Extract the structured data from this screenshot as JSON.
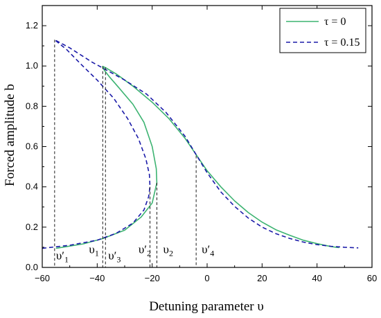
{
  "chart_data": {
    "type": "line",
    "xlabel": "Detuning  parameter υ",
    "ylabel": "Forced amplitude b",
    "xlim": [
      -60,
      60
    ],
    "ylim": [
      0,
      1.3
    ],
    "xticks": [
      "−60",
      "−40",
      "−20",
      "0",
      "20",
      "40",
      "60"
    ],
    "yticks": [
      "0.0",
      "0.2",
      "0.4",
      "0.6",
      "0.8",
      "1.0",
      "1.2"
    ],
    "legend_position": "top-right",
    "series": [
      {
        "name": "τ = 0",
        "style": "solid",
        "color": "#3cb371",
        "points": [
          [
            -55,
            0.095
          ],
          [
            -45,
            0.117
          ],
          [
            -38,
            0.143
          ],
          [
            -30,
            0.185
          ],
          [
            -24,
            0.25
          ],
          [
            -20,
            0.32
          ],
          [
            -18.3,
            0.42
          ],
          [
            -18.5,
            0.49
          ],
          [
            -20,
            0.6
          ],
          [
            -23,
            0.72
          ],
          [
            -27,
            0.81
          ],
          [
            -32,
            0.89
          ],
          [
            -35.5,
            0.945
          ],
          [
            -37.5,
            0.98
          ],
          [
            -38,
            0.998
          ],
          [
            -37,
            0.992
          ],
          [
            -33,
            0.96
          ],
          [
            -27,
            0.9
          ],
          [
            -20,
            0.82
          ],
          [
            -14,
            0.74
          ],
          [
            -8,
            0.64
          ],
          [
            -4,
            0.56
          ],
          [
            0,
            0.48
          ],
          [
            5,
            0.4
          ],
          [
            10,
            0.33
          ],
          [
            15,
            0.272
          ],
          [
            20,
            0.225
          ],
          [
            25,
            0.187
          ],
          [
            30,
            0.16
          ],
          [
            35,
            0.135
          ],
          [
            40,
            0.118
          ],
          [
            45,
            0.104
          ],
          [
            48,
            0.098
          ]
        ]
      },
      {
        "name": "τ = 0.15",
        "style": "dashed",
        "color": "#1a1aa8",
        "points": [
          [
            -60,
            0.095
          ],
          [
            -50,
            0.11
          ],
          [
            -40,
            0.135
          ],
          [
            -33,
            0.17
          ],
          [
            -27,
            0.22
          ],
          [
            -23,
            0.285
          ],
          [
            -21.3,
            0.35
          ],
          [
            -20.8,
            0.4
          ],
          [
            -21,
            0.46
          ],
          [
            -22.3,
            0.54
          ],
          [
            -25,
            0.64
          ],
          [
            -29,
            0.74
          ],
          [
            -34,
            0.84
          ],
          [
            -40,
            0.93
          ],
          [
            -46,
            1.01
          ],
          [
            -51,
            1.08
          ],
          [
            -55.5,
            1.13
          ],
          [
            -50,
            1.09
          ],
          [
            -42,
            1.02
          ],
          [
            -36,
            0.975
          ],
          [
            -30,
            0.93
          ],
          [
            -22,
            0.86
          ],
          [
            -15,
            0.77
          ],
          [
            -8,
            0.65
          ],
          [
            -4,
            0.56
          ],
          [
            0,
            0.47
          ],
          [
            5,
            0.375
          ],
          [
            10,
            0.303
          ],
          [
            15,
            0.245
          ],
          [
            20,
            0.2
          ],
          [
            25,
            0.168
          ],
          [
            30,
            0.144
          ],
          [
            35,
            0.126
          ],
          [
            40,
            0.113
          ],
          [
            45,
            0.105
          ],
          [
            50,
            0.1
          ],
          [
            55,
            0.097
          ]
        ]
      }
    ],
    "markers": [
      {
        "x": -55.5,
        "y": 1.13,
        "label": "υ′",
        "sub": "1",
        "label_x": -55,
        "label_y": 0.04
      },
      {
        "x": -38,
        "y": 0.998,
        "label": "υ",
        "sub": "1",
        "label_x": -43,
        "label_y": 0.07
      },
      {
        "x": -37,
        "y": 0.992,
        "label": "υ′",
        "sub": "3",
        "label_x": -36,
        "label_y": 0.04
      },
      {
        "x": -20.8,
        "y": 0.4,
        "label": "υ′",
        "sub": "2",
        "label_x": -25,
        "label_y": 0.07
      },
      {
        "x": -18.3,
        "y": 0.42,
        "label": "υ",
        "sub": "2",
        "label_x": -16,
        "label_y": 0.07
      },
      {
        "x": -4,
        "y": 0.555,
        "label": "υ′",
        "sub": "4",
        "label_x": -2,
        "label_y": 0.07
      }
    ]
  }
}
